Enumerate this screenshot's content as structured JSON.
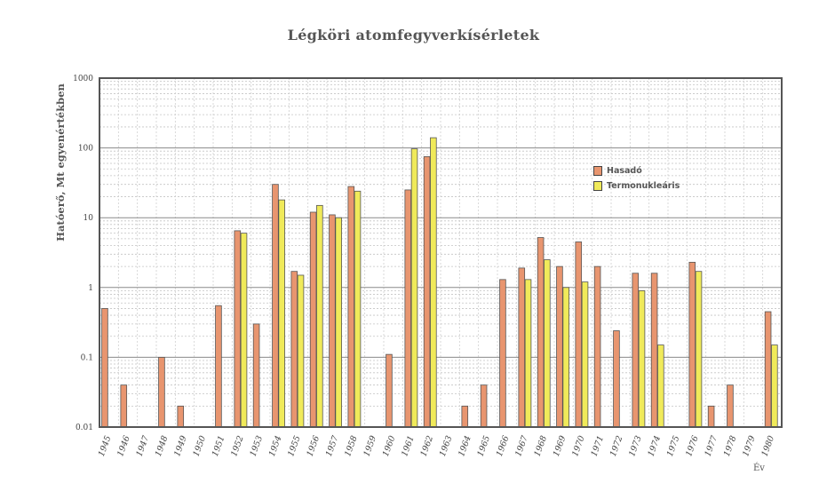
{
  "chart_data": {
    "type": "bar",
    "title": "Légköri atomfegyverkísérletek",
    "xlabel": "Év",
    "ylabel": "Hatóerő, Mt egyenértékben",
    "yscale": "log",
    "ylim": [
      0.01,
      1000
    ],
    "ytick_labels": [
      "0.01",
      "0.1",
      "1",
      "10",
      "100",
      "1000"
    ],
    "legend_position": "right",
    "categories": [
      "1945",
      "1946",
      "1947",
      "1948",
      "1949",
      "1950",
      "1951",
      "1952",
      "1953",
      "1954",
      "1955",
      "1956",
      "1957",
      "1958",
      "1959",
      "1960",
      "1961",
      "1962",
      "1963",
      "1964",
      "1965",
      "1966",
      "1967",
      "1968",
      "1969",
      "1970",
      "1971",
      "1972",
      "1973",
      "1974",
      "1975",
      "1976",
      "1977",
      "1978",
      "1979",
      "1980"
    ],
    "series": [
      {
        "name": "Hasadó",
        "color": "#e8956f",
        "values": [
          0.5,
          0.04,
          null,
          0.1,
          0.02,
          null,
          0.55,
          6.5,
          0.3,
          30,
          1.7,
          12,
          11,
          28,
          null,
          0.11,
          25,
          75,
          null,
          0.02,
          0.04,
          1.3,
          1.9,
          5.2,
          2.0,
          4.5,
          2.0,
          0.24,
          1.6,
          1.6,
          null,
          2.3,
          0.02,
          0.04,
          null,
          0.45
        ]
      },
      {
        "name": "Termonukleáris",
        "color": "#f0ea5a",
        "values": [
          null,
          null,
          null,
          null,
          null,
          null,
          null,
          6.0,
          null,
          18,
          1.5,
          15,
          10,
          24,
          null,
          null,
          97,
          140,
          null,
          null,
          null,
          null,
          1.3,
          2.5,
          1.0,
          1.2,
          null,
          null,
          0.9,
          0.15,
          null,
          1.7,
          null,
          null,
          null,
          0.15
        ]
      }
    ]
  }
}
